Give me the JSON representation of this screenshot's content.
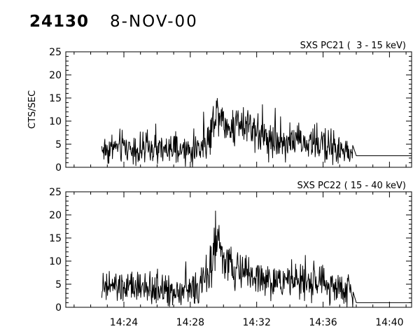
{
  "header": {
    "orbit": "24130",
    "date": "8-NOV-00"
  },
  "chart_data": [
    {
      "type": "line",
      "title": "SXS PC21 (  3 - 15 keV)",
      "ylabel": "CTS/SEC",
      "ylim": [
        0,
        25
      ],
      "y_ticks": [
        "0",
        "5",
        "10",
        "15",
        "20",
        "25"
      ],
      "xlim": [
        "14:20:30",
        "14:41:20"
      ],
      "x_ticks": [],
      "grid": false,
      "series": [
        {
          "x": [
            "14:22:40",
            "14:23:00",
            "14:23:30",
            "14:24:00",
            "14:24:30",
            "14:25:00",
            "14:25:30",
            "14:26:00",
            "14:26:30",
            "14:27:00",
            "14:27:30",
            "14:28:00",
            "14:28:30",
            "14:29:00",
            "14:29:15",
            "14:29:30",
            "14:29:45",
            "14:30:00",
            "14:30:20",
            "14:30:40",
            "14:31:00",
            "14:31:30",
            "14:32:00",
            "14:32:30",
            "14:33:00",
            "14:33:30",
            "14:34:00",
            "14:34:30",
            "14:35:00",
            "14:35:30",
            "14:36:00",
            "14:36:30",
            "14:37:00",
            "14:37:30",
            "14:37:50",
            "14:38:00",
            "14:41:20"
          ],
          "values": [
            4.0,
            3.8,
            4.3,
            4.5,
            4.0,
            3.6,
            4.0,
            3.7,
            3.5,
            3.8,
            3.4,
            3.5,
            4.3,
            5.5,
            7.5,
            12.0,
            12.5,
            10.0,
            8.5,
            9.0,
            10.5,
            9.5,
            8.0,
            6.5,
            6.0,
            5.5,
            6.0,
            5.5,
            5.0,
            5.2,
            5.0,
            4.6,
            3.5,
            3.0,
            2.8,
            2.5,
            2.5
          ]
        }
      ]
    },
    {
      "type": "line",
      "title": "SXS PC22 ( 15 - 40 keV)",
      "ylabel": "",
      "ylim": [
        0,
        25
      ],
      "y_ticks": [
        "0",
        "5",
        "10",
        "15",
        "20",
        "25"
      ],
      "xlim": [
        "14:20:30",
        "14:41:20"
      ],
      "x_ticks": [
        "14:24",
        "14:28",
        "14:32",
        "14:36",
        "14:40"
      ],
      "grid": false,
      "series": [
        {
          "x": [
            "14:22:40",
            "14:23:00",
            "14:23:30",
            "14:24:00",
            "14:24:30",
            "14:25:00",
            "14:25:30",
            "14:26:00",
            "14:26:30",
            "14:27:00",
            "14:27:30",
            "14:28:00",
            "14:28:30",
            "14:29:00",
            "14:29:15",
            "14:29:30",
            "14:29:45",
            "14:30:00",
            "14:30:20",
            "14:30:40",
            "14:31:00",
            "14:31:30",
            "14:32:00",
            "14:32:30",
            "14:33:00",
            "14:33:30",
            "14:34:00",
            "14:34:30",
            "14:35:00",
            "14:35:30",
            "14:36:00",
            "14:36:30",
            "14:37:00",
            "14:37:30",
            "14:37:50",
            "14:38:00",
            "14:41:20"
          ],
          "values": [
            4.0,
            4.2,
            4.5,
            4.0,
            4.2,
            3.8,
            3.6,
            4.0,
            3.7,
            3.5,
            3.6,
            3.8,
            4.2,
            6.5,
            9.0,
            14.0,
            13.0,
            10.0,
            9.0,
            8.0,
            7.5,
            7.0,
            6.5,
            6.0,
            5.5,
            6.0,
            5.8,
            5.5,
            5.0,
            5.5,
            5.0,
            4.5,
            4.0,
            3.5,
            3.5,
            1.0,
            1.0
          ]
        }
      ]
    }
  ]
}
